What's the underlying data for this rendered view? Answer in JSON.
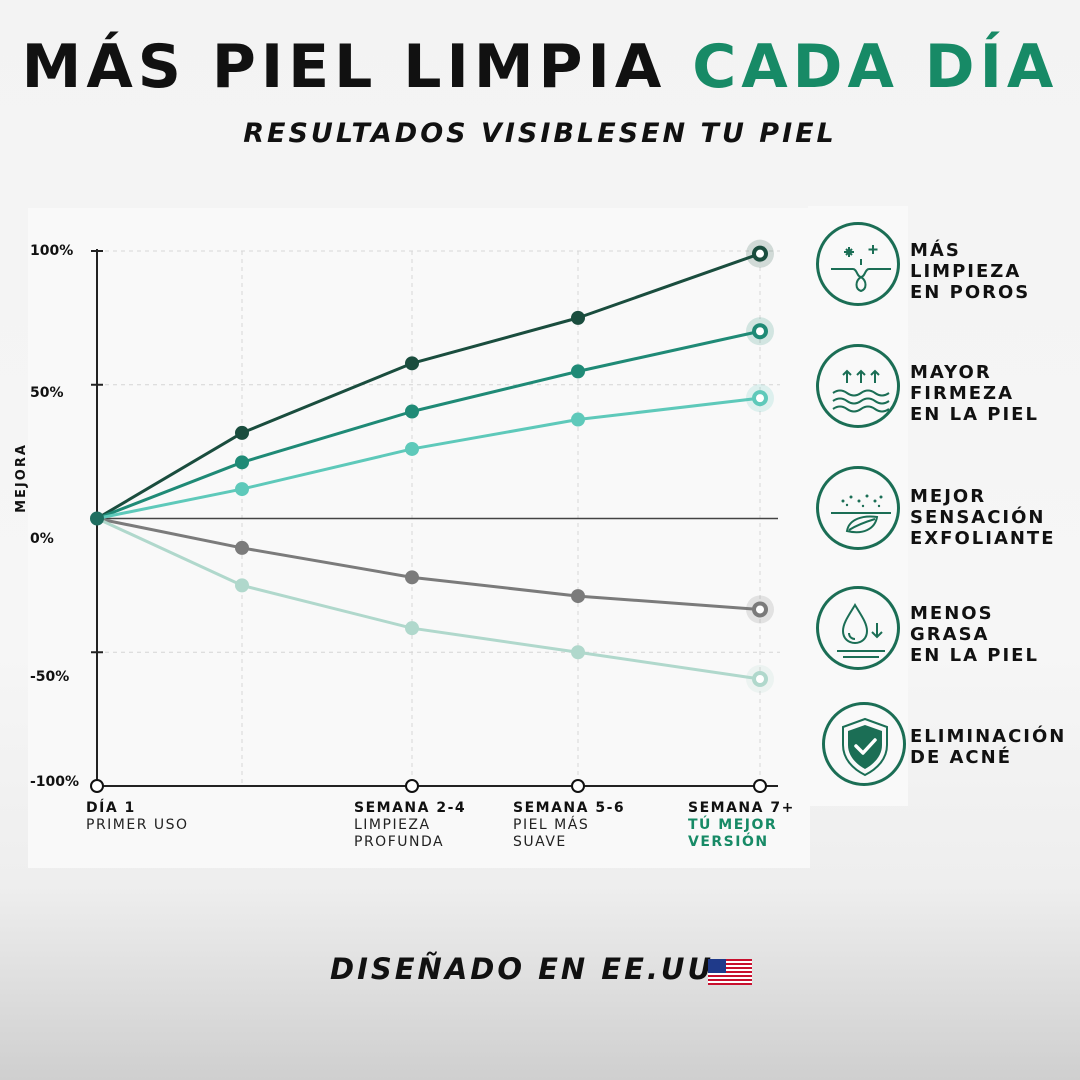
{
  "header": {
    "title_main": "MÁS PIEL LIMPIA",
    "title_accent": "CADA DÍA",
    "subtitle": "RESULTADOS VISIBLESEN TU PIEL"
  },
  "chart_data": {
    "type": "line",
    "ylabel": "MEJORA",
    "ylim": [
      -100,
      100
    ],
    "y_ticks": [
      "100%",
      "50%",
      "0%",
      "-50%",
      "-100%"
    ],
    "x": [
      0,
      1,
      2,
      3,
      4
    ],
    "x_labels": [
      {
        "title": "DÍA 1",
        "sub": "PRIMER USO"
      },
      {
        "title": "SEMANA 2-4",
        "sub": "LIMPIEZA\nPROFUNDA"
      },
      {
        "title": "SEMANA 5-6",
        "sub": "PIEL MÁS\nSUAVE"
      },
      {
        "title": "SEMANA 7+",
        "sub": "TÚ MEJOR\nVERSIÓN"
      }
    ],
    "grid": true,
    "series": [
      {
        "values": [
          0,
          32,
          58,
          75,
          99
        ],
        "color": "#1a4d3e"
      },
      {
        "values": [
          0,
          21,
          40,
          55,
          70
        ],
        "color": "#1f8a76"
      },
      {
        "values": [
          0,
          11,
          26,
          37,
          45
        ],
        "color": "#5ec9ba"
      },
      {
        "values": [
          0,
          -11,
          -22,
          -29,
          -34
        ],
        "color": "#7b7b7b"
      },
      {
        "values": [
          0,
          -25,
          -41,
          -50,
          -60
        ],
        "color": "#b0d8cc"
      }
    ]
  },
  "benefits": [
    {
      "icon": "pores-sparkle-icon",
      "text": "MÁS\nLIMPIEZA\nEN POROS"
    },
    {
      "icon": "firmness-waves-icon",
      "text": "MAYOR\nFIRMEZA\nEN LA PIEL"
    },
    {
      "icon": "exfoliation-leaf-icon",
      "text": "MEJOR\nSENSACIÓN\nEXFOLIANTE"
    },
    {
      "icon": "oil-drop-icon",
      "text": "MENOS\nGRASA\nEN LA PIEL"
    },
    {
      "icon": "shield-check-icon",
      "text": "ELIMINACIÓN\nDE ACNÉ"
    }
  ],
  "footer": {
    "text": "DISEÑADO EN EE.UU",
    "flag_icon": "us-flag-icon"
  },
  "colors": {
    "accent": "#178a66",
    "icon_stroke": "#1b6e55"
  }
}
